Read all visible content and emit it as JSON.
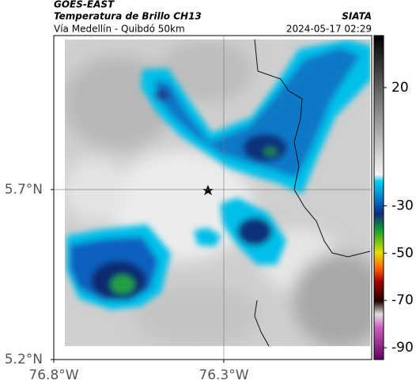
{
  "header": {
    "title": "GOES-EAST",
    "subtitle": "Temperatura de Brillo CH13",
    "route": "Vía Medellín - Quibdó 50km",
    "source": "SIATA",
    "timestamp": "2024-05-17 02:29"
  },
  "map": {
    "xlim": [
      -76.8,
      -75.865
    ],
    "ylim": [
      5.2,
      6.153
    ],
    "xticks": [
      {
        "value": -76.8,
        "label": "76.8°W"
      },
      {
        "value": -76.3,
        "label": "76.3°W"
      }
    ],
    "yticks": [
      {
        "value": 5.7,
        "label": "5.7°N"
      },
      {
        "value": 5.2,
        "label": "5.2°N"
      }
    ],
    "colorbar": {
      "lim": [
        42,
        -95
      ],
      "ticks": [
        20,
        -30,
        -50,
        -70,
        -90
      ]
    }
  }
}
